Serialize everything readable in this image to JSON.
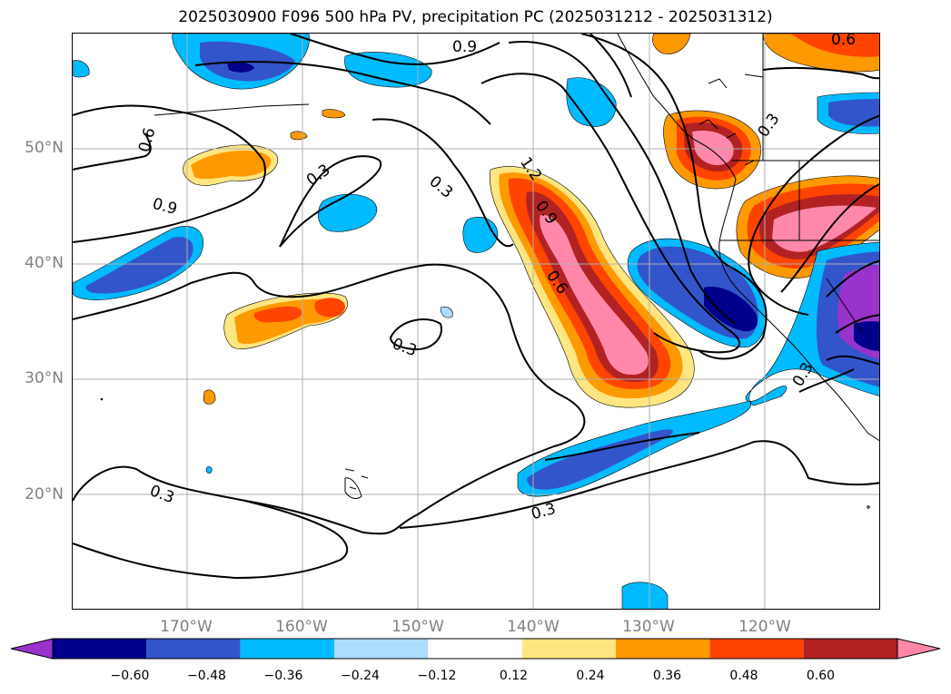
{
  "title": "2025030900 F096 500 hPa PV, precipitation PC (2025031212 - 2025031312)",
  "map": {
    "lat_labels": [
      "50°N",
      "40°N",
      "30°N",
      "20°N"
    ],
    "lon_labels": [
      "170°W",
      "160°W",
      "150°W",
      "140°W",
      "130°W",
      "120°W"
    ],
    "contour_labels": [
      "0.9",
      "0.6",
      "0.3",
      "0.9",
      "0.3",
      "1.2",
      "0.9",
      "0.6",
      "0.3",
      "0.3",
      "0.3",
      "0.3",
      "0.3",
      "0.6"
    ]
  },
  "colorbar": {
    "levels": [
      "−0.60",
      "−0.48",
      "−0.36",
      "−0.24",
      "−0.12",
      "0.12",
      "0.24",
      "0.36",
      "0.48",
      "0.60"
    ],
    "colors": [
      "#9933cc",
      "#00008b",
      "#3355cc",
      "#00bbff",
      "#aaddff",
      "#ffffff",
      "#ffe680",
      "#ff9900",
      "#ff4400",
      "#b22222",
      "#ff88aa"
    ]
  }
}
